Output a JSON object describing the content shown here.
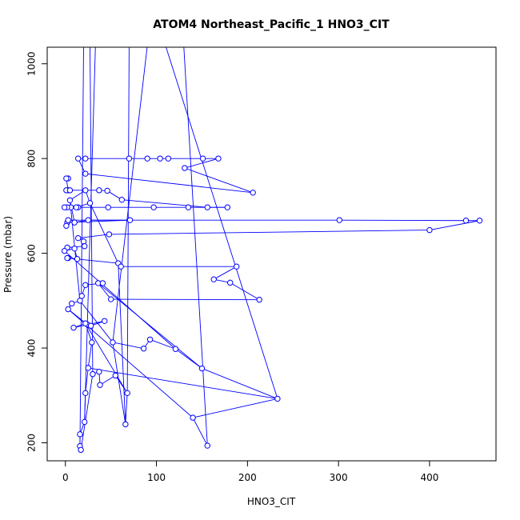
{
  "chart_data": {
    "type": "line",
    "title": "ATOM4 Northeast_Pacific_1 HNO3_CIT",
    "xlabel": "HNO3_CIT",
    "ylabel": "Pressure (mbar)",
    "xlim": [
      -20,
      473
    ],
    "ylim": [
      1035,
      162
    ],
    "y_inverted": true,
    "x_ticks": [
      0,
      100,
      200,
      300,
      400
    ],
    "y_ticks": [
      200,
      400,
      600,
      800,
      1000
    ],
    "colors": {
      "series": "#0000ff",
      "axis": "#000000"
    },
    "marker": "open-circle",
    "points": [
      {
        "x": 14,
        "y": 800
      },
      {
        "x": 22,
        "y": 800
      },
      {
        "x": 70,
        "y": 800
      },
      {
        "x": 90,
        "y": 800
      },
      {
        "x": 104,
        "y": 800
      },
      {
        "x": 113,
        "y": 800
      },
      {
        "x": 151,
        "y": 800
      },
      {
        "x": 168,
        "y": 800
      },
      {
        "x": 131,
        "y": 780
      },
      {
        "x": 206,
        "y": 728
      },
      {
        "x": 22,
        "y": 768
      },
      {
        "x": 3,
        "y": 758
      },
      {
        "x": 1,
        "y": 758
      },
      {
        "x": 3,
        "y": 733
      },
      {
        "x": 1,
        "y": 733
      },
      {
        "x": 5,
        "y": 733
      },
      {
        "x": 37,
        "y": 733
      },
      {
        "x": 46,
        "y": 732
      },
      {
        "x": 62,
        "y": 713
      },
      {
        "x": 156,
        "y": 697
      },
      {
        "x": 178,
        "y": 697
      },
      {
        "x": 135,
        "y": 697
      },
      {
        "x": 97,
        "y": 697
      },
      {
        "x": 47,
        "y": 697
      },
      {
        "x": 14,
        "y": 697
      },
      {
        "x": 6,
        "y": 697
      },
      {
        "x": 2,
        "y": 697
      },
      {
        "x": -1,
        "y": 697
      },
      {
        "x": 12,
        "y": 697
      },
      {
        "x": 27,
        "y": 706
      },
      {
        "x": 22,
        "y": 733
      },
      {
        "x": 5,
        "y": 712
      },
      {
        "x": 10,
        "y": 665
      },
      {
        "x": 25,
        "y": 670
      },
      {
        "x": 71,
        "y": 670
      },
      {
        "x": 2,
        "y": 665
      },
      {
        "x": 1,
        "y": 658
      },
      {
        "x": 3,
        "y": 670
      },
      {
        "x": 301,
        "y": 670
      },
      {
        "x": 440,
        "y": 669
      },
      {
        "x": 455,
        "y": 669
      },
      {
        "x": 400,
        "y": 649
      },
      {
        "x": 48,
        "y": 640
      },
      {
        "x": 14,
        "y": 632
      },
      {
        "x": 20,
        "y": 625
      },
      {
        "x": 21,
        "y": 615
      },
      {
        "x": 2,
        "y": 612
      },
      {
        "x": -1,
        "y": 605
      },
      {
        "x": 10,
        "y": 610
      },
      {
        "x": 13,
        "y": 588
      },
      {
        "x": 3,
        "y": 590
      },
      {
        "x": 2,
        "y": 590
      },
      {
        "x": 58,
        "y": 579
      },
      {
        "x": 61,
        "y": 572
      },
      {
        "x": 188,
        "y": 572
      },
      {
        "x": 163,
        "y": 545
      },
      {
        "x": 181,
        "y": 538
      },
      {
        "x": 213,
        "y": 502
      },
      {
        "x": 50,
        "y": 503
      },
      {
        "x": 36,
        "y": 537
      },
      {
        "x": 41,
        "y": 537
      },
      {
        "x": 22,
        "y": 533
      },
      {
        "x": 18,
        "y": 510
      },
      {
        "x": 16,
        "y": 500
      },
      {
        "x": 7,
        "y": 494
      },
      {
        "x": 3,
        "y": 482
      },
      {
        "x": 24,
        "y": 450
      },
      {
        "x": 28,
        "y": 447
      },
      {
        "x": 43,
        "y": 457
      },
      {
        "x": 9,
        "y": 443
      },
      {
        "x": 22,
        "y": 452
      },
      {
        "x": 29,
        "y": 412
      },
      {
        "x": 25,
        "y": 358
      },
      {
        "x": 22,
        "y": 305
      },
      {
        "x": 21,
        "y": 244
      },
      {
        "x": 16,
        "y": 218
      },
      {
        "x": 16,
        "y": 193
      },
      {
        "x": 17,
        "y": 185
      },
      {
        "x": 30,
        "y": 345
      },
      {
        "x": 37,
        "y": 350
      },
      {
        "x": 38,
        "y": 322
      },
      {
        "x": 55,
        "y": 342
      },
      {
        "x": 68,
        "y": 305
      },
      {
        "x": 66,
        "y": 239
      },
      {
        "x": 52,
        "y": 412
      },
      {
        "x": 86,
        "y": 399
      },
      {
        "x": 93,
        "y": 418
      },
      {
        "x": 121,
        "y": 398
      },
      {
        "x": 150,
        "y": 357
      },
      {
        "x": 233,
        "y": 293
      },
      {
        "x": 140,
        "y": 253
      },
      {
        "x": 156,
        "y": 194
      }
    ],
    "segments": [
      [
        0,
        1
      ],
      [
        1,
        2
      ],
      [
        2,
        3
      ],
      [
        3,
        4
      ],
      [
        4,
        5
      ],
      [
        5,
        6
      ],
      [
        6,
        7
      ],
      [
        7,
        8
      ],
      [
        8,
        9
      ],
      [
        9,
        10
      ],
      [
        10,
        0
      ],
      [
        11,
        12
      ],
      [
        12,
        13
      ],
      [
        13,
        14
      ],
      [
        14,
        15
      ],
      [
        15,
        16
      ],
      [
        16,
        17
      ],
      [
        17,
        18
      ],
      [
        18,
        19
      ],
      [
        19,
        20
      ],
      [
        20,
        21
      ],
      [
        21,
        22
      ],
      [
        22,
        23
      ],
      [
        23,
        24
      ],
      [
        24,
        25
      ],
      [
        25,
        26
      ],
      [
        26,
        27
      ],
      [
        27,
        28
      ],
      [
        28,
        29
      ],
      [
        29,
        30
      ],
      [
        30,
        31
      ],
      [
        31,
        32
      ],
      [
        32,
        33
      ],
      [
        33,
        34
      ],
      [
        34,
        35
      ],
      [
        35,
        36
      ],
      [
        36,
        37
      ],
      [
        37,
        38
      ],
      [
        38,
        39
      ],
      [
        39,
        40
      ],
      [
        40,
        41
      ],
      [
        41,
        42
      ],
      [
        42,
        43
      ],
      [
        43,
        44
      ],
      [
        44,
        45
      ],
      [
        45,
        46
      ],
      [
        46,
        47
      ],
      [
        47,
        48
      ],
      [
        48,
        49
      ],
      [
        49,
        50
      ],
      [
        50,
        51
      ],
      [
        51,
        52
      ],
      [
        52,
        53
      ],
      [
        53,
        54
      ],
      [
        54,
        55
      ],
      [
        55,
        56
      ],
      [
        56,
        57
      ],
      [
        57,
        58
      ],
      [
        58,
        59
      ],
      [
        59,
        60
      ],
      [
        60,
        61
      ],
      [
        61,
        62
      ],
      [
        62,
        63
      ],
      [
        63,
        64
      ],
      [
        64,
        65
      ],
      [
        65,
        66
      ],
      [
        66,
        67
      ],
      [
        67,
        68
      ],
      [
        68,
        69
      ],
      [
        69,
        70
      ],
      [
        70,
        71
      ],
      [
        71,
        72
      ],
      [
        72,
        73
      ],
      [
        73,
        74
      ],
      [
        74,
        75
      ],
      [
        75,
        76
      ],
      [
        76,
        77
      ],
      [
        77,
        78
      ],
      [
        78,
        79
      ],
      [
        79,
        80
      ],
      [
        80,
        81
      ],
      [
        81,
        82
      ],
      [
        82,
        83
      ],
      [
        83,
        84
      ],
      [
        84,
        85
      ],
      [
        85,
        86
      ],
      [
        86,
        87
      ],
      [
        87,
        88
      ],
      [
        88,
        89
      ],
      [
        89,
        90
      ],
      [
        90,
        91
      ],
      [
        29,
        52
      ],
      [
        31,
        63
      ],
      [
        59,
        88
      ],
      [
        65,
        90
      ],
      [
        72,
        89
      ],
      [
        47,
        87
      ],
      [
        70,
        82
      ],
      [
        52,
        83
      ],
      [
        63,
        84
      ]
    ],
    "overflow_lines": [
      {
        "from": 76,
        "x_top": 20
      },
      {
        "from": 78,
        "x_top": 27
      },
      {
        "from": 74,
        "x_top": 33
      },
      {
        "from": 82,
        "x_top": 70
      },
      {
        "from": 84,
        "x_top": 90
      },
      {
        "from": 89,
        "x_top": 110
      },
      {
        "from": 91,
        "x_top": 130
      }
    ]
  }
}
